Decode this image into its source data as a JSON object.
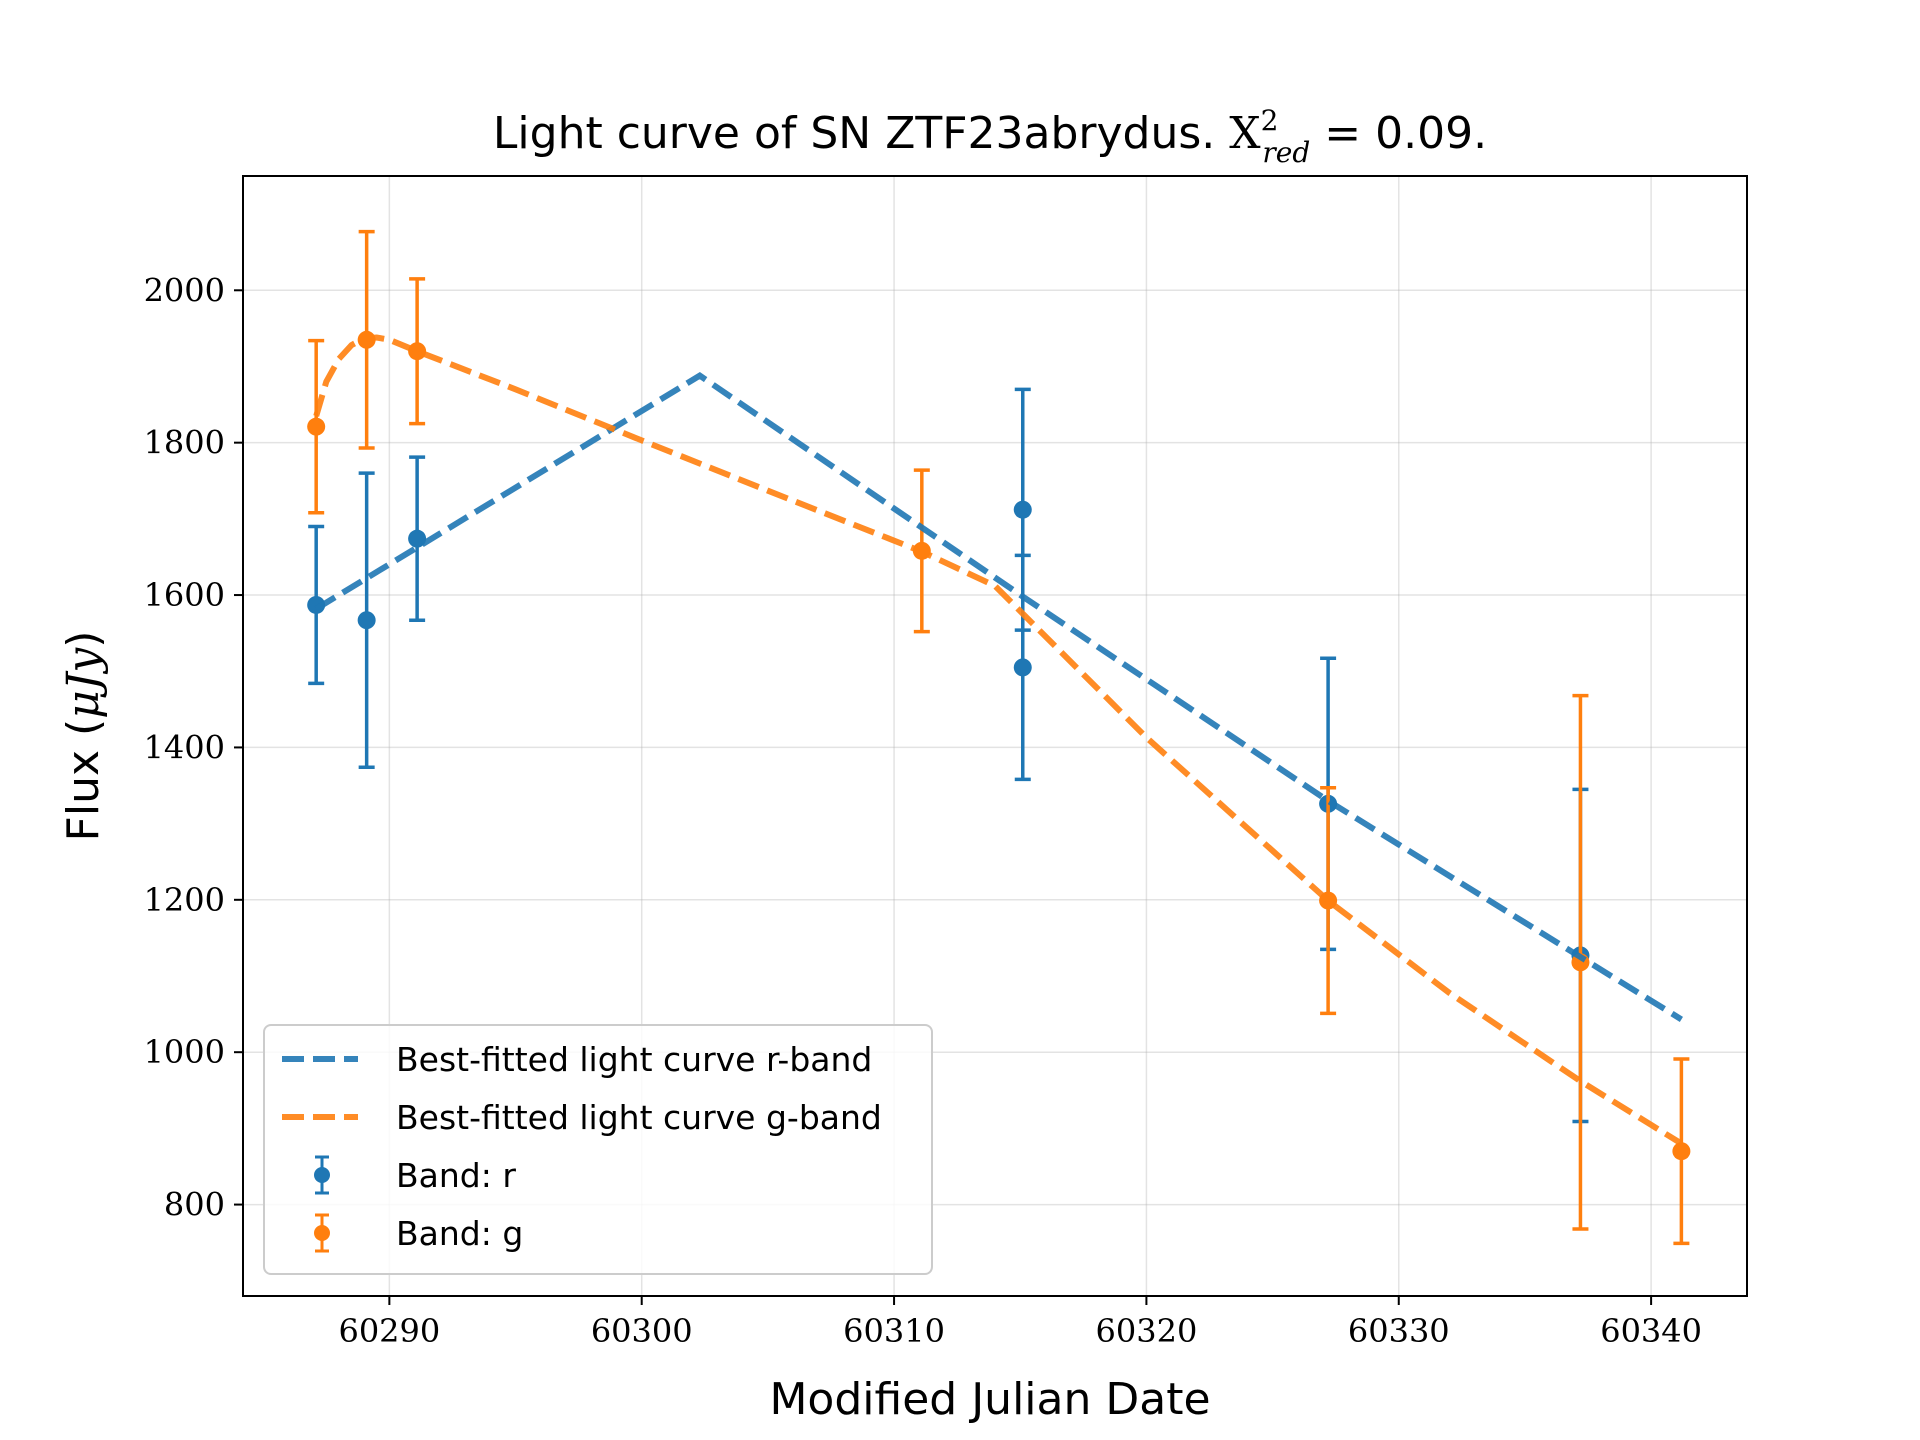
{
  "chart_data": {
    "type": "scatter",
    "title": {
      "prefix": "Light curve of SN ZTF23abrydus. ",
      "symbol": "X",
      "superscript": "2",
      "subscript": "red",
      "suffix": " = 0.09."
    },
    "xlabel": "Modified Julian Date",
    "ylabel": {
      "prefix": "Flux (",
      "unit": "μJy",
      "suffix": ")"
    },
    "xlim": [
      60284.2,
      60343.8
    ],
    "ylim": [
      680,
      2150
    ],
    "xticks": [
      60290,
      60300,
      60310,
      60320,
      60330,
      60340
    ],
    "yticks": [
      800,
      1000,
      1200,
      1400,
      1600,
      1800,
      2000
    ],
    "grid": true,
    "legend_position": "lower-left",
    "series": [
      {
        "name": "Band: r",
        "kind": "errorbar",
        "color": "#1f77b4",
        "x": [
          60287.1,
          60289.1,
          60291.1,
          60315.1,
          60315.1,
          60327.2,
          60337.2
        ],
        "y": [
          1587,
          1567,
          1674,
          1712,
          1505,
          1326,
          1127
        ],
        "yerr": [
          103,
          193,
          107,
          158,
          147,
          191,
          218
        ]
      },
      {
        "name": "Band: g",
        "kind": "errorbar",
        "color": "#ff7f0e",
        "x": [
          60287.1,
          60289.1,
          60291.1,
          60311.1,
          60327.2,
          60337.2,
          60341.2
        ],
        "y": [
          1821,
          1935,
          1920,
          1658,
          1199,
          1118,
          870
        ],
        "yerr": [
          113,
          142,
          95,
          106,
          148,
          350,
          121
        ]
      },
      {
        "name": "Best-fitted light curve r-band",
        "kind": "line",
        "color": "#1f77b4",
        "x": [
          60287.1,
          60302.3,
          60315.1,
          60327.2,
          60337.2,
          60341.2
        ],
        "y": [
          1582,
          1888,
          1598,
          1330,
          1125,
          1043
        ]
      },
      {
        "name": "Best-fitted light curve g-band",
        "kind": "line",
        "color": "#ff7f0e",
        "x": [
          60287.1,
          60287.5,
          60288.0,
          60288.5,
          60289.0,
          60289.5,
          60290.0,
          60291.1,
          60295.0,
          60300.0,
          60305.0,
          60311.1,
          60314.0,
          60320.0,
          60327.2,
          60332.0,
          60337.2,
          60341.2
        ],
        "y": [
          1835,
          1880,
          1910,
          1928,
          1937,
          1938,
          1935,
          1920,
          1870,
          1803,
          1737,
          1657,
          1612,
          1413,
          1199,
          1078,
          962,
          880
        ]
      }
    ]
  }
}
